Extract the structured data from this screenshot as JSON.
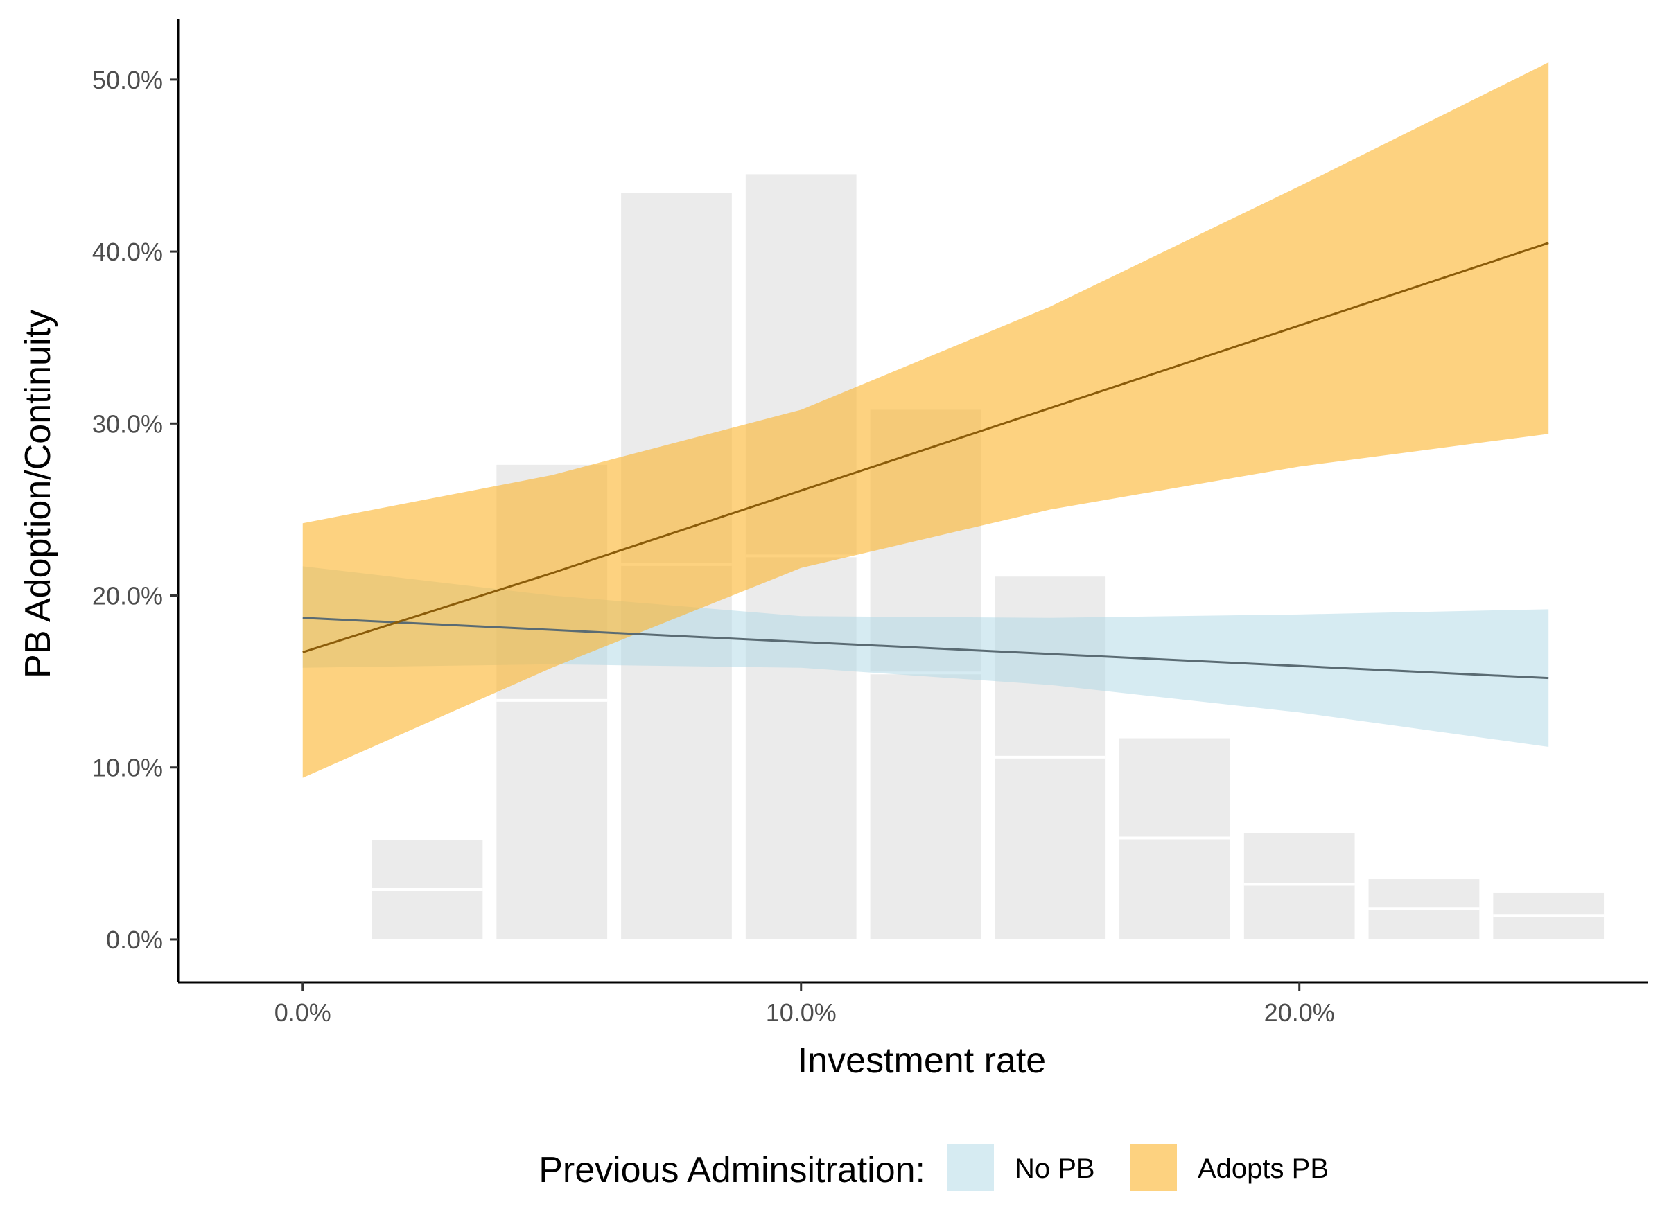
{
  "chart_data": {
    "type": "area",
    "title": "",
    "xlabel": "Investment rate",
    "ylabel": "PB Adoption/Continuity",
    "xlim": [
      -0.025,
      0.27
    ],
    "ylim": [
      -0.025,
      0.535
    ],
    "x_ticks": [
      {
        "value": 0.0,
        "label": "0.0%"
      },
      {
        "value": 0.1,
        "label": "10.0%"
      },
      {
        "value": 0.2,
        "label": "20.0%"
      }
    ],
    "y_ticks": [
      {
        "value": 0.0,
        "label": "0.0%"
      },
      {
        "value": 0.1,
        "label": "10.0%"
      },
      {
        "value": 0.2,
        "label": "20.0%"
      },
      {
        "value": 0.3,
        "label": "30.0%"
      },
      {
        "value": 0.4,
        "label": "40.0%"
      },
      {
        "value": 0.5,
        "label": "50.0%"
      }
    ],
    "histogram": {
      "bin_width": 0.025,
      "bins": [
        {
          "center": 0.025,
          "total": 0.058,
          "split": 0.029
        },
        {
          "center": 0.05,
          "total": 0.276,
          "split": 0.139
        },
        {
          "center": 0.075,
          "total": 0.434,
          "split": 0.218
        },
        {
          "center": 0.1,
          "total": 0.445,
          "split": 0.223
        },
        {
          "center": 0.125,
          "total": 0.308,
          "split": 0.155
        },
        {
          "center": 0.15,
          "total": 0.211,
          "split": 0.106
        },
        {
          "center": 0.175,
          "total": 0.117,
          "split": 0.059
        },
        {
          "center": 0.2,
          "total": 0.062,
          "split": 0.032
        },
        {
          "center": 0.225,
          "total": 0.035,
          "split": 0.018
        },
        {
          "center": 0.25,
          "total": 0.027,
          "split": 0.014
        }
      ]
    },
    "series": [
      {
        "name": "No PB",
        "color": "#add8e6",
        "line_color": "#5a6b73",
        "x": [
          0.0,
          0.05,
          0.1,
          0.15,
          0.2,
          0.25
        ],
        "y": [
          0.187,
          0.18,
          0.173,
          0.166,
          0.159,
          0.152
        ],
        "lower": [
          0.158,
          0.16,
          0.158,
          0.148,
          0.132,
          0.112
        ],
        "upper": [
          0.217,
          0.2,
          0.188,
          0.187,
          0.189,
          0.192
        ]
      },
      {
        "name": "Adopts PB",
        "color": "#fbb42b",
        "line_color": "#8b5c0a",
        "x": [
          0.0,
          0.05,
          0.1,
          0.15,
          0.2,
          0.25
        ],
        "y": [
          0.167,
          0.213,
          0.261,
          0.309,
          0.357,
          0.405
        ],
        "lower": [
          0.094,
          0.158,
          0.216,
          0.25,
          0.275,
          0.294
        ],
        "upper": [
          0.242,
          0.27,
          0.308,
          0.368,
          0.438,
          0.51
        ]
      }
    ],
    "legend": {
      "position": "bottom",
      "title": "Previous Adminsitration:"
    }
  }
}
